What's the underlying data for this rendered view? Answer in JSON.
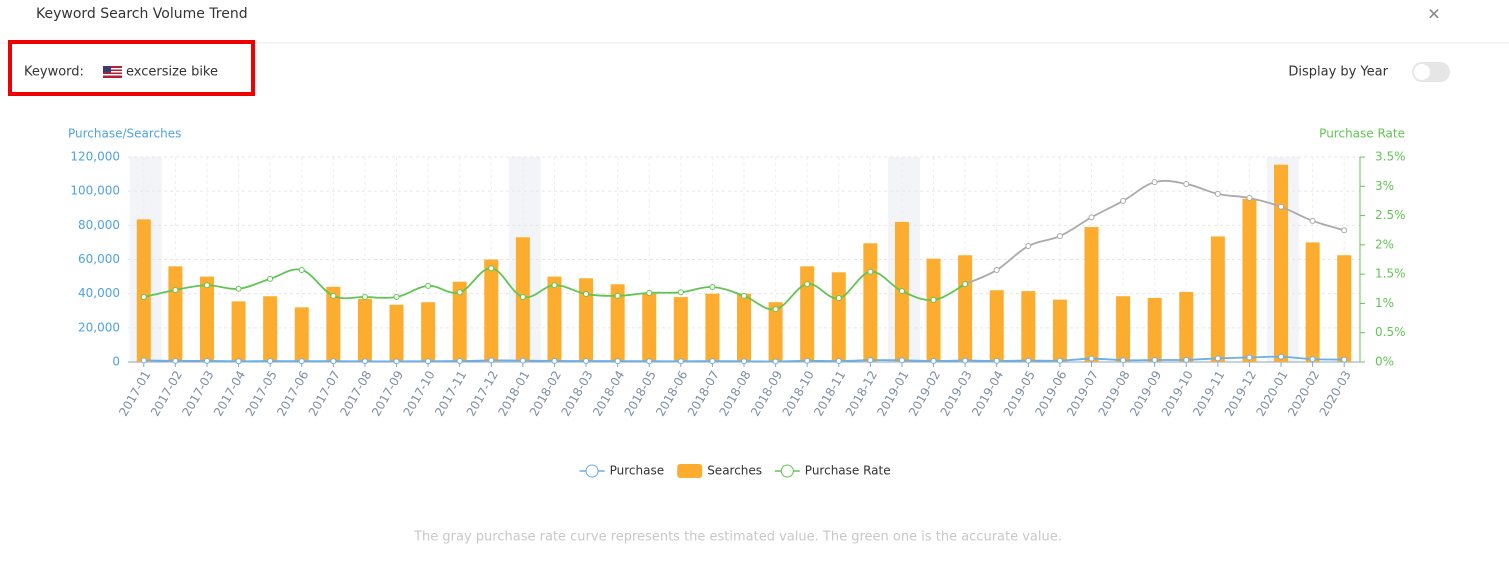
{
  "header": {
    "title": "Keyword Search Volume Trend",
    "close": "✕"
  },
  "keyword": {
    "label": "Keyword:",
    "value": "excersize bike"
  },
  "toggle": {
    "label": "Display by Year"
  },
  "note": "The gray purchase rate curve represents the estimated value. The green one is the accurate value.",
  "chart_data": {
    "type": "bar-line",
    "y_label": "Purchase/Searches",
    "y2_label": "Purchase Rate",
    "categories": [
      "2017-01",
      "2017-02",
      "2017-03",
      "2017-04",
      "2017-05",
      "2017-06",
      "2017-07",
      "2017-08",
      "2017-09",
      "2017-10",
      "2017-11",
      "2017-12",
      "2018-01",
      "2018-02",
      "2018-03",
      "2018-04",
      "2018-05",
      "2018-06",
      "2018-07",
      "2018-08",
      "2018-09",
      "2018-10",
      "2018-11",
      "2018-12",
      "2019-01",
      "2019-02",
      "2019-03",
      "2019-04",
      "2019-05",
      "2019-06",
      "2019-07",
      "2019-08",
      "2019-09",
      "2019-10",
      "2019-11",
      "2019-12",
      "2020-01",
      "2020-02",
      "2020-03"
    ],
    "series": [
      {
        "name": "Purchase",
        "kind": "line",
        "color": "#6aafe6",
        "values": [
          930,
          690,
          655,
          440,
          550,
          500,
          500,
          410,
          370,
          455,
          560,
          960,
          810,
          655,
          570,
          515,
          470,
          450,
          510,
          450,
          315,
          745,
          570,
          1070,
          990,
          640,
          830,
          660,
          820,
          785,
          1950,
          1060,
          1150,
          1250,
          2110,
          2670,
          3060,
          1690,
          1410
        ]
      },
      {
        "name": "Searches",
        "kind": "bar",
        "color": "#fcac2f",
        "values": [
          83500,
          56000,
          50000,
          35500,
          38500,
          32000,
          44000,
          37000,
          33500,
          35000,
          47000,
          60000,
          73000,
          50000,
          49000,
          45500,
          40000,
          38000,
          40000,
          40000,
          35000,
          56000,
          52500,
          69500,
          82000,
          60500,
          62500,
          42000,
          41500,
          36500,
          79000,
          38500,
          37500,
          41000,
          73500,
          95500,
          115500,
          70000,
          62500
        ]
      },
      {
        "name": "Purchase Rate",
        "kind": "line",
        "axis": "y2",
        "color": "#62c454",
        "estimated_color": "#aaaaaa",
        "values": [
          1.11,
          1.23,
          1.31,
          1.25,
          1.42,
          1.57,
          1.13,
          1.11,
          1.11,
          1.3,
          1.19,
          1.6,
          1.11,
          1.31,
          1.16,
          1.13,
          1.18,
          1.19,
          1.28,
          1.13,
          0.9,
          1.33,
          1.09,
          1.54,
          1.21,
          1.06,
          1.33,
          null,
          null,
          null,
          null,
          null,
          null,
          null,
          null,
          null,
          null,
          null,
          null
        ],
        "estimated_values": [
          null,
          null,
          null,
          null,
          null,
          null,
          null,
          null,
          null,
          null,
          null,
          null,
          null,
          null,
          null,
          null,
          null,
          null,
          null,
          null,
          null,
          null,
          null,
          null,
          null,
          null,
          1.33,
          1.57,
          1.98,
          2.15,
          2.47,
          2.75,
          3.07,
          3.04,
          2.87,
          2.8,
          2.65,
          2.41,
          2.25
        ]
      }
    ],
    "ylim": [
      0,
      120000
    ],
    "yticks": [
      0,
      {
        "value": 20000,
        "label": "20,000"
      },
      {
        "value": 40000,
        "label": "40,000"
      },
      {
        "value": 60000,
        "label": "60,000"
      },
      {
        "value": 80000,
        "label": "80,000"
      },
      {
        "value": 100000,
        "label": "100,000"
      },
      {
        "value": 120000,
        "label": "120,000"
      }
    ],
    "y2lim": [
      0,
      3.5
    ],
    "y2ticks": [
      {
        "value": 0,
        "label": "0%"
      },
      {
        "value": 0.5,
        "label": "0.5%"
      },
      {
        "value": 1,
        "label": "1%"
      },
      {
        "value": 1.5,
        "label": "1.5%"
      },
      {
        "value": 2,
        "label": "2%"
      },
      {
        "value": 2.5,
        "label": "2.5%"
      },
      {
        "value": 3,
        "label": "3%"
      },
      {
        "value": 3.5,
        "label": "3.5%"
      }
    ],
    "grid": true,
    "legend": "bottom"
  }
}
